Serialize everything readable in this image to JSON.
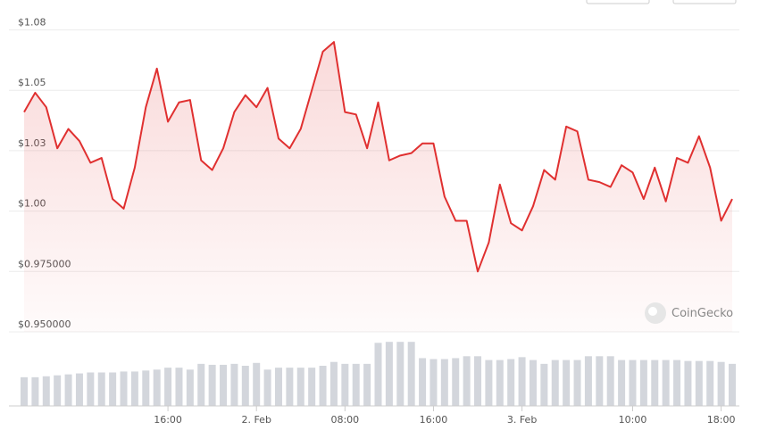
{
  "chart_data": {
    "type": "line",
    "watermark": "CoinGecko",
    "categories": [
      null,
      null,
      null,
      null,
      null,
      null,
      null,
      null,
      null,
      null,
      null,
      null,
      null,
      "16:00",
      null,
      null,
      null,
      null,
      null,
      null,
      null,
      "2. Feb",
      null,
      null,
      null,
      null,
      null,
      null,
      null,
      "08:00",
      null,
      null,
      null,
      null,
      null,
      null,
      null,
      "16:00",
      null,
      null,
      null,
      null,
      null,
      null,
      null,
      "3. Feb",
      null,
      null,
      null,
      null,
      null,
      null,
      null,
      null,
      null,
      "10:00",
      null,
      null,
      null,
      null,
      null,
      null,
      null,
      "18:00",
      null
    ],
    "series": [
      {
        "color": "#e03030",
        "values": [
          1.041,
          1.049,
          1.043,
          1.026,
          1.034,
          1.029,
          1.02,
          1.022,
          1.005,
          1.001,
          1.018,
          1.043,
          1.059,
          1.037,
          1.045,
          1.046,
          1.021,
          1.017,
          1.026,
          1.041,
          1.048,
          1.043,
          1.051,
          1.03,
          1.026,
          1.034,
          1.05,
          1.066,
          1.07,
          1.041,
          1.04,
          1.026,
          1.045,
          1.021,
          1.023,
          1.024,
          1.028,
          1.028,
          1.006,
          0.996,
          0.996,
          0.975,
          0.987,
          1.011,
          0.995,
          0.992,
          1.002,
          1.017,
          1.013,
          1.035,
          1.033,
          1.013,
          1.012,
          1.01,
          1.019,
          1.016,
          1.005,
          1.018,
          1.004,
          1.022,
          1.02,
          1.031,
          1.018,
          0.996,
          1.005
        ]
      }
    ],
    "volume": {
      "type": "bar",
      "color": "#d3d6dc",
      "ylim": [
        0,
        70
      ],
      "values": [
        30,
        30,
        31,
        32,
        33,
        34,
        35,
        35,
        35,
        36,
        36,
        37,
        38,
        40,
        40,
        38,
        44,
        43,
        43,
        44,
        42,
        45,
        38,
        40,
        40,
        40,
        40,
        42,
        46,
        44,
        44,
        44,
        66,
        67,
        67,
        67,
        50,
        49,
        49,
        50,
        52,
        52,
        48,
        48,
        49,
        51,
        48,
        44,
        48,
        48,
        48,
        52,
        52,
        52,
        48,
        48,
        48,
        48,
        48,
        48,
        47,
        47,
        47,
        46,
        44
      ]
    },
    "ylim": [
      0.95,
      1.08
    ],
    "yticks": [
      {
        "value": 0.95,
        "label": "$0.950000"
      },
      {
        "value": 0.975,
        "label": "$0.975000"
      },
      {
        "value": 1.0,
        "label": "$1.00"
      },
      {
        "value": 1.025,
        "label": "$1.03"
      },
      {
        "value": 1.05,
        "label": "$1.05"
      },
      {
        "value": 1.075,
        "label": "$1.08"
      }
    ],
    "grid": true
  }
}
